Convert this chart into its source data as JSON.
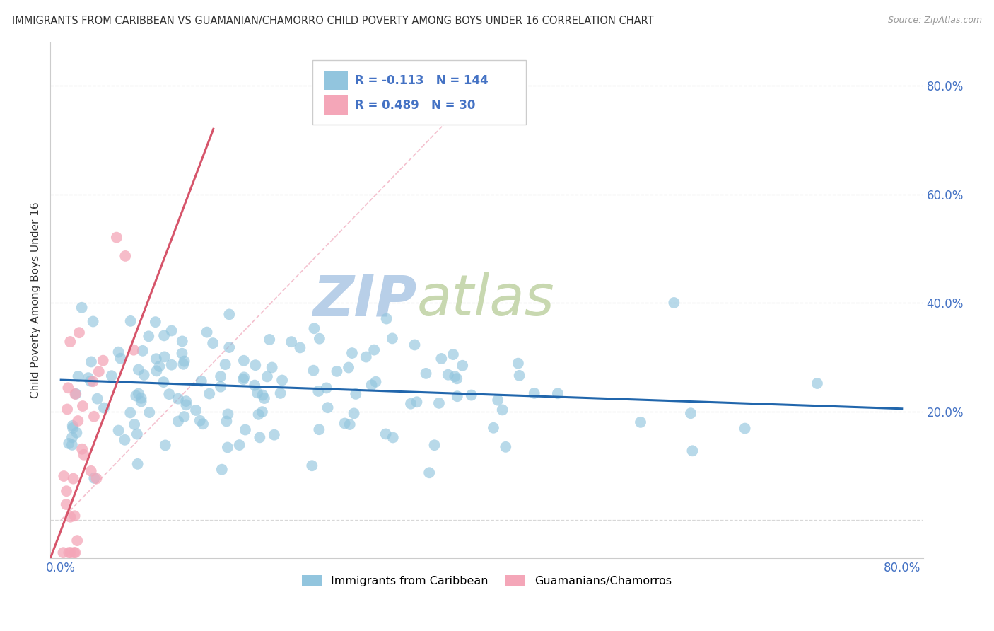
{
  "title": "IMMIGRANTS FROM CARIBBEAN VS GUAMANIAN/CHAMORRO CHILD POVERTY AMONG BOYS UNDER 16 CORRELATION CHART",
  "source": "Source: ZipAtlas.com",
  "ylabel": "Child Poverty Among Boys Under 16",
  "xlim": [
    -0.01,
    0.82
  ],
  "ylim": [
    -0.07,
    0.88
  ],
  "xtick_positions": [
    0.0,
    0.1,
    0.2,
    0.3,
    0.4,
    0.5,
    0.6,
    0.7,
    0.8
  ],
  "xtick_labels": [
    "0.0%",
    "",
    "",
    "",
    "",
    "",
    "",
    "",
    "80.0%"
  ],
  "ytick_positions": [
    0.0,
    0.2,
    0.4,
    0.6,
    0.8
  ],
  "ytick_labels": [
    "",
    "20.0%",
    "40.0%",
    "60.0%",
    "80.0%"
  ],
  "R_blue": -0.113,
  "N_blue": 144,
  "R_pink": 0.489,
  "N_pink": 30,
  "blue_color": "#92c5de",
  "pink_color": "#f4a6b8",
  "blue_line_color": "#2166ac",
  "pink_line_color": "#d6546a",
  "diag_line_color": "#f4c0ce",
  "legend_label_blue": "Immigrants from Caribbean",
  "legend_label_pink": "Guamanians/Chamorros",
  "watermark_zip": "ZIP",
  "watermark_atlas": "atlas",
  "watermark_color_zip": "#b8cfe8",
  "watermark_color_atlas": "#c8d8b0",
  "background_color": "#ffffff",
  "grid_color": "#d8d8d8",
  "tick_color": "#4472c4",
  "blue_trend_x": [
    0.0,
    0.8
  ],
  "blue_trend_y": [
    0.258,
    0.205
  ],
  "pink_trend_x": [
    -0.01,
    0.145
  ],
  "pink_trend_y": [
    -0.07,
    0.72
  ],
  "diag_line_x": [
    0.0,
    0.4
  ],
  "diag_line_y": [
    0.0,
    0.8
  ]
}
